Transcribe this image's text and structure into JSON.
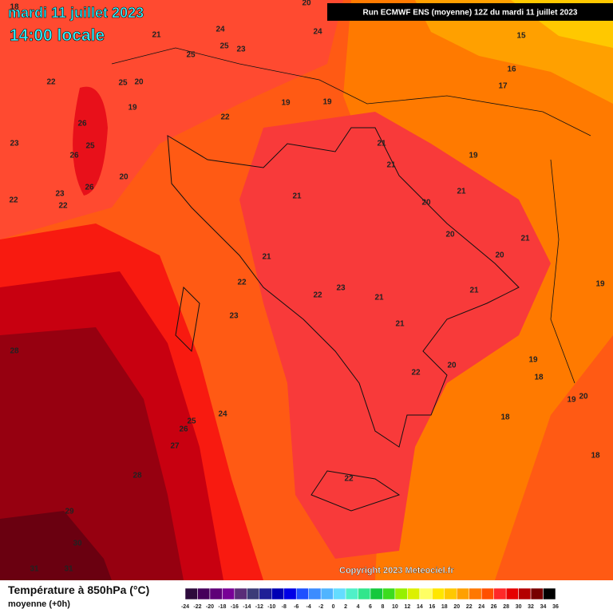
{
  "header": {
    "date": "mardi 11 juillet 2023",
    "time": "14:00 locale",
    "run": "Run ECMWF ENS (moyenne) 12Z du mardi 11 juillet 2023"
  },
  "copyright": "Copyright 2023 Meteociel.fr",
  "legend": {
    "title": "Température à 850hPa (°C)",
    "subtitle": "moyenne  (+0h)",
    "ticks": [
      -24,
      -22,
      -20,
      -18,
      -16,
      -14,
      -12,
      -10,
      -8,
      -6,
      -4,
      -2,
      0,
      2,
      4,
      6,
      8,
      10,
      12,
      14,
      16,
      18,
      20,
      22,
      24,
      26,
      28,
      30,
      32,
      34,
      36
    ],
    "colors": [
      "#2d0a3c",
      "#46005a",
      "#5f0078",
      "#780096",
      "#5a2d78",
      "#3c3c78",
      "#1e1e96",
      "#0000b4",
      "#0000e6",
      "#1e50ff",
      "#3c8cff",
      "#50b4ff",
      "#64dcff",
      "#50f0c8",
      "#32e68c",
      "#14c83c",
      "#3cdc1e",
      "#96f000",
      "#dcf000",
      "#ffff64",
      "#ffe600",
      "#ffc800",
      "#ffa000",
      "#ff7800",
      "#ff5000",
      "#ff2828",
      "#e60000",
      "#b40000",
      "#780000",
      "#000000"
    ]
  },
  "contour_labels": [
    18,
    20,
    21,
    24,
    25,
    23,
    25,
    24,
    22,
    25,
    20,
    19,
    26,
    23,
    25,
    26,
    22,
    19,
    19,
    20,
    26,
    23,
    22,
    22,
    15,
    16,
    17,
    21,
    21,
    19,
    21,
    20,
    21,
    20,
    21,
    20,
    21,
    22,
    23,
    22,
    21,
    21,
    19,
    23,
    21,
    28,
    19,
    18,
    20,
    22,
    19,
    20,
    18,
    25,
    24,
    26,
    27,
    28,
    22,
    18,
    29,
    30,
    31,
    31
  ]
}
